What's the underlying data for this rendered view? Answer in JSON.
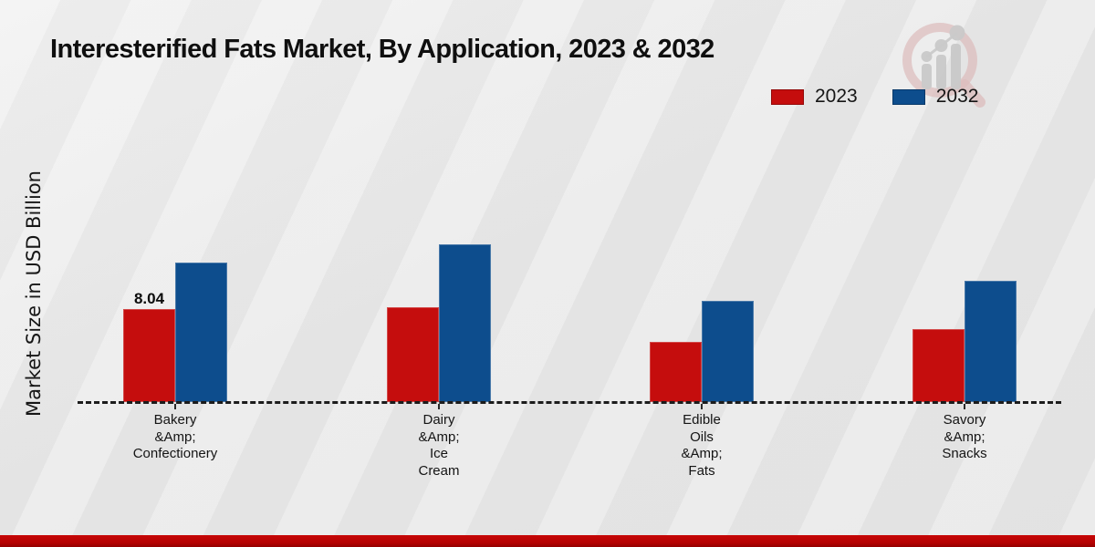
{
  "title": "Interesterified Fats Market, By Application, 2023 & 2032",
  "y_axis_label": "Market Size in USD Billion",
  "legend": [
    {
      "label": "2023",
      "color": "#c50d0d"
    },
    {
      "label": "2032",
      "color": "#0d4d8d"
    }
  ],
  "colors": {
    "bar_2023": "#c50d0d",
    "bar_2032": "#0d4d8d",
    "footer_band": "#b50202",
    "baseline": "#1c1c1c"
  },
  "icons": {
    "logo": "magnifier-bar-chart-logo"
  },
  "chart_data": {
    "type": "bar",
    "title": "Interesterified Fats Market, By Application, 2023 & 2032",
    "ylabel": "Market Size in USD Billion",
    "xlabel": "",
    "categories": [
      "Bakery\n&Amp;\nConfectionery",
      "Dairy\n&Amp;\nIce\nCream",
      "Edible\nOils\n&Amp;\nFats",
      "Savory\n&Amp;\nSnacks"
    ],
    "series": [
      {
        "name": "2023",
        "color": "#c50d0d",
        "values": [
          8.04,
          8.2,
          5.2,
          6.3
        ]
      },
      {
        "name": "2032",
        "color": "#0d4d8d",
        "values": [
          12.06,
          13.6,
          8.75,
          10.5
        ]
      }
    ],
    "bar_labels": {
      "series_2023_group_0": "8.04"
    },
    "ylim": [
      0,
      15
    ],
    "grid": false,
    "baseline_style": "dashed",
    "legend_position": "top-right"
  }
}
